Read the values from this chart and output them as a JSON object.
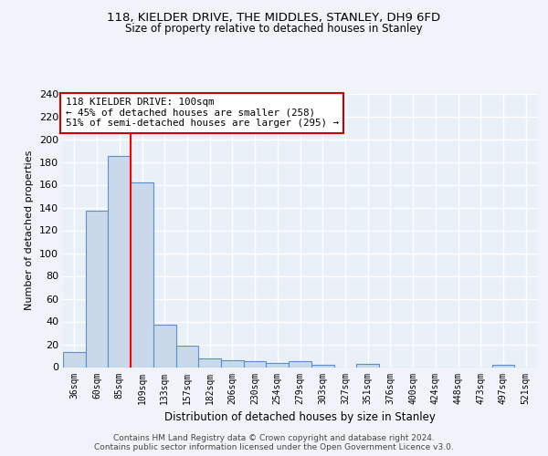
{
  "title_line1": "118, KIELDER DRIVE, THE MIDDLES, STANLEY, DH9 6FD",
  "title_line2": "Size of property relative to detached houses in Stanley",
  "xlabel": "Distribution of detached houses by size in Stanley",
  "ylabel": "Number of detached properties",
  "categories": [
    "36sqm",
    "60sqm",
    "85sqm",
    "109sqm",
    "133sqm",
    "157sqm",
    "182sqm",
    "206sqm",
    "230sqm",
    "254sqm",
    "279sqm",
    "303sqm",
    "327sqm",
    "351sqm",
    "376sqm",
    "400sqm",
    "424sqm",
    "448sqm",
    "473sqm",
    "497sqm",
    "521sqm"
  ],
  "values": [
    13,
    137,
    185,
    162,
    37,
    19,
    8,
    6,
    5,
    4,
    5,
    2,
    0,
    3,
    0,
    0,
    0,
    0,
    0,
    2,
    0
  ],
  "bar_color": "#c9d9ea",
  "bar_edge_color": "#5b8fc9",
  "annotation_text": "118 KIELDER DRIVE: 100sqm\n← 45% of detached houses are smaller (258)\n51% of semi-detached houses are larger (295) →",
  "annotation_box_color": "#ffffff",
  "annotation_box_edge": "#cc0000",
  "ylim": [
    0,
    240
  ],
  "yticks": [
    0,
    20,
    40,
    60,
    80,
    100,
    120,
    140,
    160,
    180,
    200,
    220,
    240
  ],
  "background_color": "#eaf0f8",
  "grid_color": "#ffffff",
  "fig_background": "#f0f4fa",
  "footer_text": "Contains HM Land Registry data © Crown copyright and database right 2024.\nContains public sector information licensed under the Open Government Licence v3.0.",
  "red_line_x": 2.5
}
